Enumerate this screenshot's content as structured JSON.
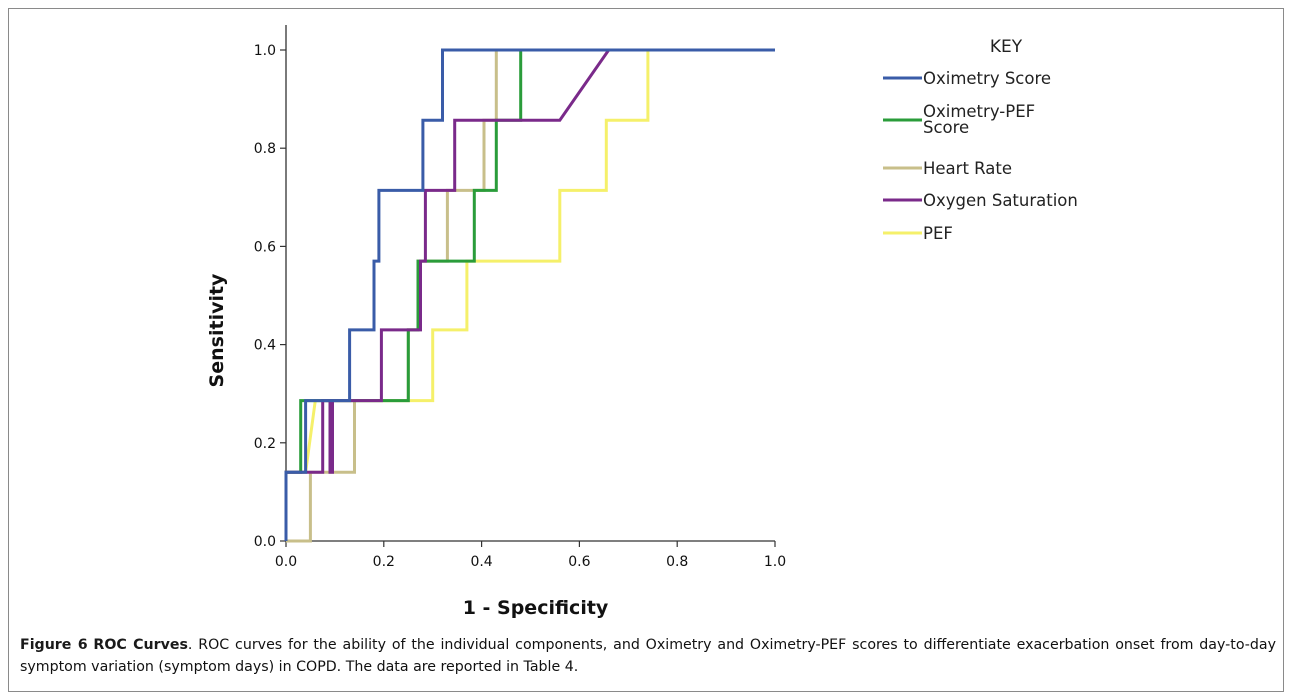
{
  "chart_data": {
    "type": "line",
    "line_style": "step",
    "xlabel": "1 - Specificity",
    "ylabel": "Sensitivity",
    "xlim": [
      0,
      1
    ],
    "ylim": [
      0,
      1
    ],
    "x_ticks": [
      "0.0",
      "0.2",
      "0.4",
      "0.6",
      "0.8",
      "1.0"
    ],
    "y_ticks": [
      "0.0",
      "0.2",
      "0.4",
      "0.6",
      "0.8",
      "1.0"
    ],
    "grid": false,
    "legend": {
      "title": "KEY",
      "placement": "right"
    },
    "series": [
      {
        "name": "Oximetry Score",
        "color": "#3a5ca8",
        "points": [
          [
            0,
            0
          ],
          [
            0,
            0.14
          ],
          [
            0.04,
            0.14
          ],
          [
            0.04,
            0.286
          ],
          [
            0.09,
            0.286
          ],
          [
            0.13,
            0.286
          ],
          [
            0.13,
            0.43
          ],
          [
            0.18,
            0.43
          ],
          [
            0.18,
            0.57
          ],
          [
            0.19,
            0.57
          ],
          [
            0.19,
            0.714
          ],
          [
            0.28,
            0.714
          ],
          [
            0.28,
            0.857
          ],
          [
            0.32,
            0.857
          ],
          [
            0.32,
            1.0
          ],
          [
            0.43,
            1.0
          ],
          [
            1.0,
            1.0
          ]
        ]
      },
      {
        "name": "Oximetry-PEF\nScore",
        "color": "#2a9c3a",
        "points": [
          [
            0,
            0
          ],
          [
            0,
            0.14
          ],
          [
            0.03,
            0.14
          ],
          [
            0.03,
            0.286
          ],
          [
            0.25,
            0.286
          ],
          [
            0.25,
            0.43
          ],
          [
            0.26,
            0.43
          ],
          [
            0.26,
            0.43
          ],
          [
            0.27,
            0.43
          ],
          [
            0.27,
            0.57
          ],
          [
            0.385,
            0.57
          ],
          [
            0.385,
            0.714
          ],
          [
            0.43,
            0.714
          ],
          [
            0.43,
            0.857
          ],
          [
            0.48,
            0.857
          ],
          [
            0.48,
            1.0
          ],
          [
            1.0,
            1.0
          ]
        ]
      },
      {
        "name": "Heart Rate",
        "color": "#c8bf8a",
        "points": [
          [
            0,
            0
          ],
          [
            0.05,
            0
          ],
          [
            0.05,
            0.14
          ],
          [
            0.14,
            0.14
          ],
          [
            0.14,
            0.286
          ],
          [
            0.25,
            0.286
          ],
          [
            0.25,
            0.43
          ],
          [
            0.27,
            0.43
          ],
          [
            0.27,
            0.57
          ],
          [
            0.33,
            0.57
          ],
          [
            0.33,
            0.714
          ],
          [
            0.405,
            0.714
          ],
          [
            0.405,
            0.857
          ],
          [
            0.43,
            0.857
          ],
          [
            0.43,
            1.0
          ],
          [
            1.0,
            1.0
          ]
        ]
      },
      {
        "name": "Oxygen Saturation",
        "color": "#7a2a8a",
        "points": [
          [
            0,
            0
          ],
          [
            0,
            0.14
          ],
          [
            0.075,
            0.14
          ],
          [
            0.075,
            0.286
          ],
          [
            0.09,
            0.286
          ],
          [
            0.09,
            0.14
          ],
          [
            0.095,
            0.14
          ],
          [
            0.095,
            0.286
          ],
          [
            0.195,
            0.286
          ],
          [
            0.195,
            0.43
          ],
          [
            0.275,
            0.43
          ],
          [
            0.275,
            0.57
          ],
          [
            0.285,
            0.57
          ],
          [
            0.285,
            0.714
          ],
          [
            0.345,
            0.714
          ],
          [
            0.345,
            0.857
          ],
          [
            0.56,
            0.857
          ],
          [
            0.66,
            1.0
          ],
          [
            1.0,
            1.0
          ]
        ]
      },
      {
        "name": "PEF",
        "color": "#f5f06a",
        "points": [
          [
            0,
            0
          ],
          [
            0,
            0.14
          ],
          [
            0.04,
            0.14
          ],
          [
            0.06,
            0.286
          ],
          [
            0.3,
            0.286
          ],
          [
            0.3,
            0.43
          ],
          [
            0.37,
            0.43
          ],
          [
            0.37,
            0.57
          ],
          [
            0.56,
            0.57
          ],
          [
            0.56,
            0.714
          ],
          [
            0.655,
            0.714
          ],
          [
            0.655,
            0.857
          ],
          [
            0.74,
            0.857
          ],
          [
            0.74,
            1.0
          ],
          [
            1.0,
            1.0
          ]
        ]
      }
    ]
  },
  "caption": {
    "label": "Figure 6",
    "title": "ROC Curves",
    "text": ". ROC curves for the ability of the individual components, and Oximetry and Oximetry-PEF scores to differentiate exacerbation onset from day-to-day symptom variation (symptom days) in COPD. The data are reported in Table 4."
  }
}
